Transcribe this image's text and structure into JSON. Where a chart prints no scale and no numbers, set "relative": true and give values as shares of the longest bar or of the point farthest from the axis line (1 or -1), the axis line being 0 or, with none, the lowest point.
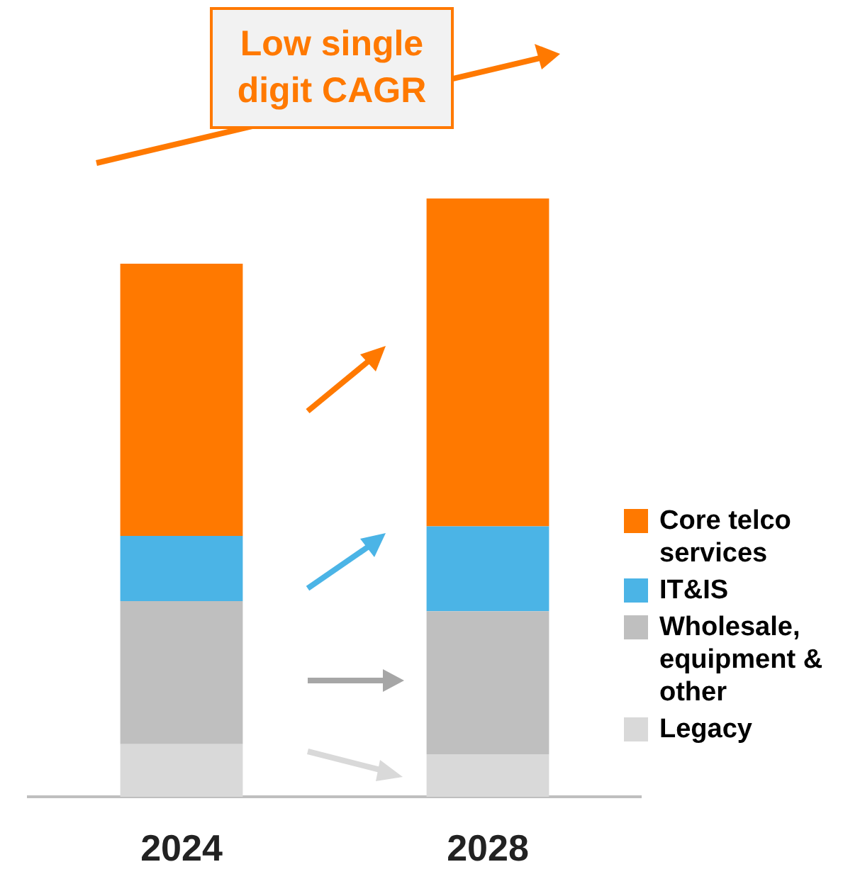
{
  "chart_data": {
    "type": "bar",
    "relative": true,
    "stacked": true,
    "categories": [
      "2024",
      "2028"
    ],
    "series": [
      {
        "name": "Legacy",
        "color": "#d9d9d9",
        "values": [
          0.088,
          0.071
        ]
      },
      {
        "name": "Wholesale, equipment & other",
        "color": "#bfbfbf",
        "values": [
          0.239,
          0.239
        ]
      },
      {
        "name": "IT&IS",
        "color": "#4bb4e6",
        "values": [
          0.109,
          0.142
        ]
      },
      {
        "name": "Core telco services",
        "color": "#ff7900",
        "values": [
          0.455,
          0.548
        ]
      }
    ],
    "legend": "right",
    "grid": false,
    "annotations": [
      "Low single digit CAGR"
    ]
  }
}
